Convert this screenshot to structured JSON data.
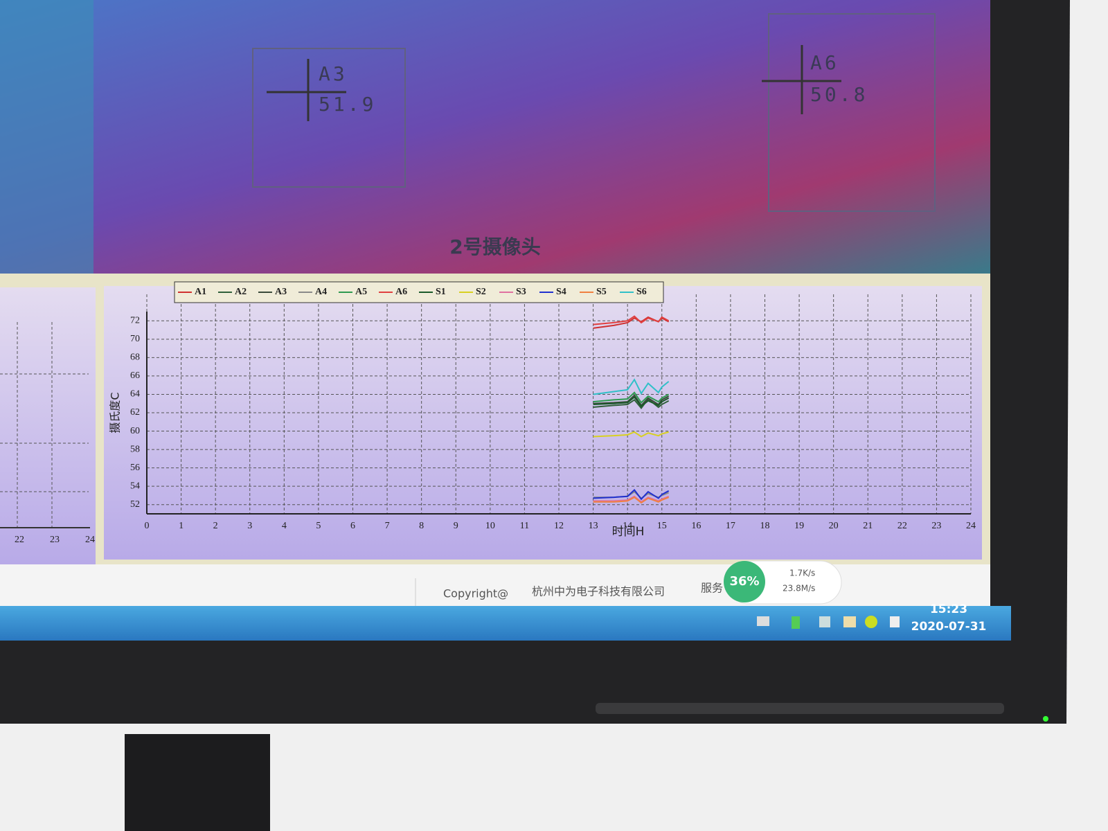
{
  "camera": {
    "title": "2号摄像头",
    "boxes": [
      {
        "label": "A3",
        "value": "51.9"
      },
      {
        "label": "A6",
        "value": "50.8"
      }
    ]
  },
  "left_chart": {
    "xticks": [
      22,
      23,
      24
    ]
  },
  "chart_data": {
    "type": "line",
    "xlabel": "时间H",
    "ylabel": "摄氏度C",
    "xlim": [
      0,
      24
    ],
    "xticks": [
      0,
      1,
      2,
      3,
      4,
      5,
      6,
      7,
      8,
      9,
      10,
      11,
      12,
      13,
      14,
      15,
      16,
      17,
      18,
      19,
      20,
      21,
      22,
      23,
      24
    ],
    "ylim": [
      51,
      73
    ],
    "yticks": [
      52,
      54,
      56,
      58,
      60,
      62,
      64,
      66,
      68,
      70,
      72
    ],
    "grid": true,
    "legend": "top-left",
    "x": [
      13,
      13.6,
      14,
      14.2,
      14.4,
      14.6,
      14.9,
      15,
      15.2
    ],
    "series": [
      {
        "name": "A1",
        "color": "#d03030",
        "values": [
          71.2,
          71.5,
          71.8,
          72.3,
          71.9,
          72.4,
          71.9,
          72.3,
          71.9
        ]
      },
      {
        "name": "A2",
        "color": "#2f5f3a",
        "values": [
          62.6,
          62.8,
          62.9,
          63.4,
          62.5,
          63.5,
          62.6,
          62.9,
          63.3
        ]
      },
      {
        "name": "A3",
        "color": "#3a4a3a",
        "values": [
          63.0,
          63.1,
          63.2,
          63.9,
          62.8,
          63.6,
          62.9,
          63.4,
          63.8
        ]
      },
      {
        "name": "A4",
        "color": "#8a8a8a",
        "values": [
          52.8,
          52.8,
          52.9,
          53.4,
          52.7,
          53.2,
          52.8,
          53.0,
          53.3
        ]
      },
      {
        "name": "A5",
        "color": "#2e9a50",
        "values": [
          63.2,
          63.4,
          63.5,
          64.2,
          63.1,
          63.8,
          63.2,
          63.6,
          64.0
        ]
      },
      {
        "name": "A6",
        "color": "#e04040",
        "values": [
          71.6,
          71.8,
          72.0,
          72.5,
          71.8,
          72.3,
          71.9,
          72.4,
          72.0
        ]
      },
      {
        "name": "S1",
        "color": "#1a5a2a",
        "values": [
          62.9,
          63.0,
          63.1,
          63.7,
          62.7,
          63.3,
          62.8,
          63.2,
          63.6
        ]
      },
      {
        "name": "S2",
        "color": "#d8d020",
        "values": [
          59.4,
          59.5,
          59.6,
          59.9,
          59.4,
          59.8,
          59.5,
          59.7,
          59.9
        ]
      },
      {
        "name": "S3",
        "color": "#e070a0",
        "values": [
          52.4,
          52.4,
          52.5,
          52.9,
          52.3,
          52.8,
          52.4,
          52.6,
          52.9
        ]
      },
      {
        "name": "S4",
        "color": "#2030d0",
        "values": [
          52.7,
          52.8,
          52.9,
          53.6,
          52.6,
          53.4,
          52.7,
          53.1,
          53.5
        ]
      },
      {
        "name": "S5",
        "color": "#f08040",
        "values": [
          52.3,
          52.3,
          52.4,
          52.8,
          52.2,
          52.7,
          52.3,
          52.5,
          52.8
        ]
      },
      {
        "name": "S6",
        "color": "#30c0c8",
        "values": [
          64.0,
          64.3,
          64.5,
          65.6,
          64.1,
          65.2,
          64.2,
          64.8,
          65.4
        ]
      }
    ]
  },
  "status_bar": {
    "copyright": "Copyright@",
    "company": "杭州中为电子科技有限公司",
    "service": "服务",
    "widget_percent": "36%",
    "upload": "1.7K/s",
    "download": "23.8M/s"
  },
  "taskbar": {
    "time": "15:23",
    "date": "2020-07-31"
  }
}
